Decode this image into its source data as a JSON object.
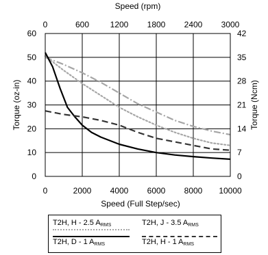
{
  "chart_data": {
    "type": "line",
    "top_axis": {
      "label": "Speed (rpm)",
      "range": [
        0,
        3000
      ],
      "ticks": [
        "0",
        "600",
        "1200",
        "1800",
        "2400",
        "3000"
      ]
    },
    "x_axis": {
      "label": "Speed (Full Step/sec)",
      "range": [
        0,
        10000
      ],
      "ticks": [
        "0",
        "2000",
        "4000",
        "6000",
        "8000",
        "10000"
      ]
    },
    "y_axis": {
      "label": "Torque (oz-in)",
      "range": [
        0,
        60
      ],
      "ticks": [
        "0",
        "10",
        "20",
        "30",
        "40",
        "50",
        "60"
      ]
    },
    "y2_axis": {
      "label": "Torque (Ncm)",
      "range": [
        0,
        42
      ],
      "ticks": [
        "0",
        "7",
        "14",
        "21",
        "28",
        "35",
        "42"
      ]
    },
    "grid": true,
    "legend_placement": "bottom",
    "series": [
      {
        "name": "T2H, H - 2.5 A",
        "name_sub": "RMS",
        "color": "#a6a6a6",
        "style": "dotted",
        "x": [
          0,
          1000,
          2000,
          3000,
          4000,
          5000,
          6000,
          7000,
          8000,
          9000,
          10000
        ],
        "y": [
          50.5,
          44.5,
          39,
          34,
          29,
          25,
          21.5,
          18.5,
          16,
          14,
          13
        ]
      },
      {
        "name": "T2H, J - 3.5 A",
        "name_sub": "RMS",
        "color": "#a6a6a6",
        "style": "dashdot",
        "x": [
          0,
          1000,
          2000,
          3000,
          4000,
          5000,
          6000,
          7000,
          8000,
          9000,
          10000
        ],
        "y": [
          50,
          47,
          43.5,
          39.5,
          35,
          30.5,
          27,
          23.5,
          21,
          19,
          17.5
        ]
      },
      {
        "name": "T2H, D - 1 A",
        "name_sub": "RMS",
        "color": "#000000",
        "style": "solid",
        "x": [
          0,
          400,
          800,
          1200,
          1600,
          2000,
          2500,
          3000,
          4000,
          5000,
          6000,
          7000,
          8000,
          9000,
          10000
        ],
        "y": [
          52,
          46,
          37,
          29,
          25,
          21.5,
          18.5,
          16.5,
          13.5,
          11.5,
          10,
          9,
          8.3,
          7.7,
          7.2
        ]
      },
      {
        "name": "T2H, H - 1 A",
        "name_sub": "RMS",
        "color": "#333333",
        "style": "dashed",
        "x": [
          0,
          1000,
          2000,
          3000,
          4000,
          5000,
          6000,
          7000,
          8000,
          9000,
          10000
        ],
        "y": [
          27.5,
          26,
          25,
          23.5,
          21.5,
          18.5,
          16,
          14.5,
          13,
          11.5,
          11
        ]
      }
    ]
  }
}
